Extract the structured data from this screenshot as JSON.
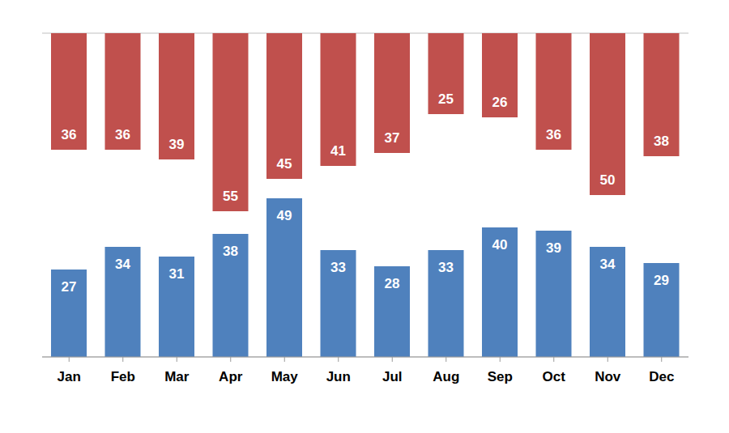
{
  "chart_data": {
    "type": "bar",
    "categories": [
      "Jan",
      "Feb",
      "Mar",
      "Apr",
      "May",
      "Jun",
      "Jul",
      "Aug",
      "Sep",
      "Oct",
      "Nov",
      "Dec"
    ],
    "series": [
      {
        "color": "#c0504d",
        "axis": "y2",
        "values": [
          36,
          36,
          39,
          55,
          45,
          41,
          37,
          25,
          26,
          36,
          50,
          38
        ]
      },
      {
        "color": "#4f81bd",
        "values": [
          27,
          34,
          31,
          38,
          49,
          33,
          28,
          33,
          40,
          39,
          34,
          29
        ]
      }
    ],
    "ylim": [
      0,
      100
    ],
    "yticks": [
      0,
      10,
      20,
      30,
      40,
      50,
      60,
      70,
      80,
      90,
      100
    ],
    "y2lim": [
      0,
      100
    ],
    "y2ticks": [
      0,
      10,
      20,
      30,
      40,
      50,
      60,
      70,
      80,
      90,
      100
    ],
    "grid": true,
    "data_labels": true,
    "tick_labels": "x"
  }
}
